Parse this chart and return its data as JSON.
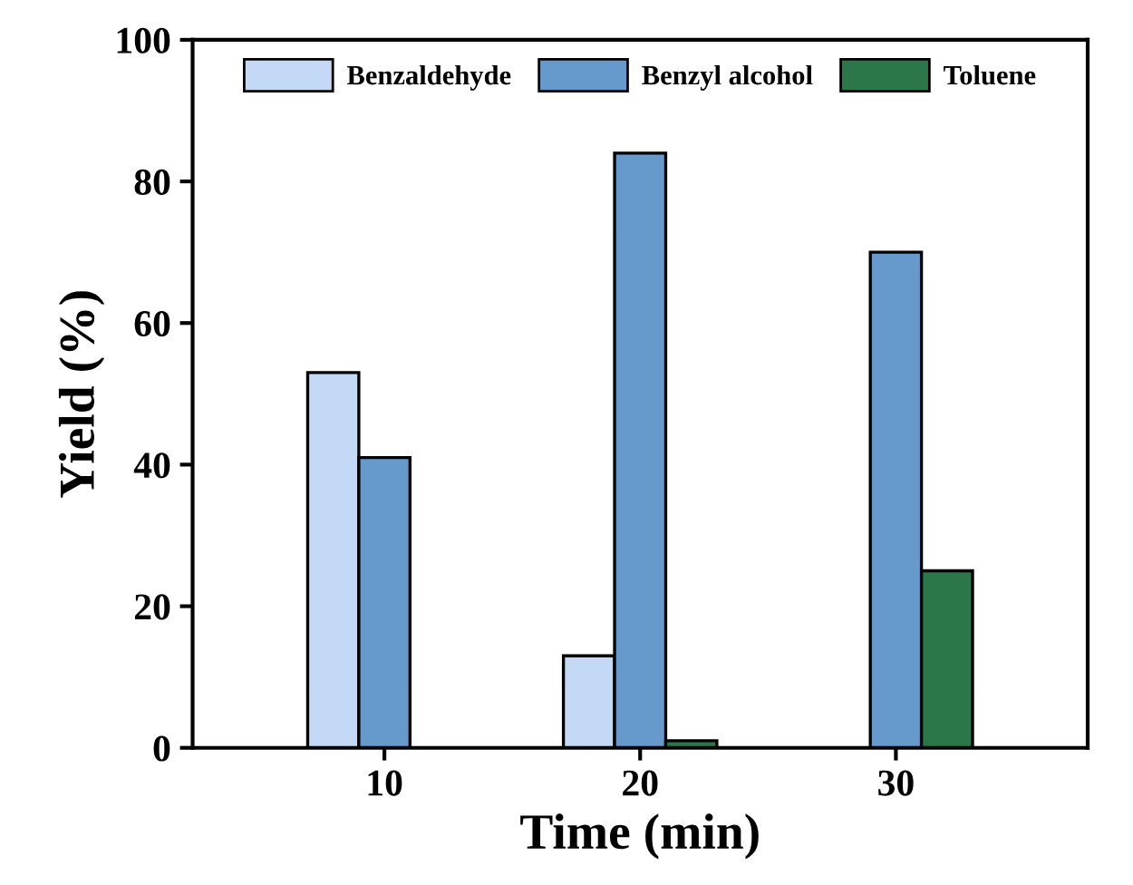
{
  "chart_data": {
    "type": "bar",
    "xlabel": "Time (min)",
    "ylabel": "Yield (%)",
    "categories": [
      "10",
      "20",
      "30"
    ],
    "series": [
      {
        "name": "Benzaldehyde",
        "color": "#c3d9f6",
        "values": [
          53,
          13,
          null
        ]
      },
      {
        "name": "Benzyl alcohol",
        "color": "#6699cc",
        "values": [
          41,
          84,
          70
        ]
      },
      {
        "name": "Toluene",
        "color": "#2b774a",
        "values": [
          null,
          1,
          25
        ]
      }
    ],
    "ylim": [
      0,
      100
    ],
    "yticks": [
      0,
      20,
      40,
      60,
      80,
      100
    ],
    "grid": false,
    "legend": "top"
  }
}
